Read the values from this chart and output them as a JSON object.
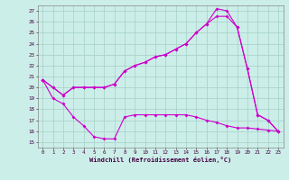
{
  "bg_color": "#cceee8",
  "grid_color": "#aad4cc",
  "line_color": "#cc00cc",
  "xlim": [
    -0.5,
    23.5
  ],
  "ylim": [
    14.5,
    27.5
  ],
  "ytick_vals": [
    15,
    16,
    17,
    18,
    19,
    20,
    21,
    22,
    23,
    24,
    25,
    26,
    27
  ],
  "xtick_vals": [
    0,
    1,
    2,
    3,
    4,
    5,
    6,
    7,
    8,
    9,
    10,
    11,
    12,
    13,
    14,
    15,
    16,
    17,
    18,
    19,
    20,
    21,
    22,
    23
  ],
  "xlabel": "Windchill (Refroidissement éolien,°C)",
  "line1_x": [
    0,
    1,
    2,
    3,
    4,
    5,
    6,
    7,
    8,
    9,
    10,
    11,
    12,
    13,
    14,
    15,
    16,
    17,
    18,
    19,
    20,
    21,
    22,
    23
  ],
  "line1_y": [
    20.7,
    20.0,
    19.3,
    20.0,
    20.0,
    20.0,
    20.0,
    20.3,
    21.5,
    22.0,
    22.3,
    22.8,
    23.0,
    23.5,
    24.0,
    25.0,
    25.8,
    27.2,
    27.0,
    25.5,
    21.7,
    17.5,
    17.0,
    16.0
  ],
  "line2_x": [
    0,
    1,
    2,
    3,
    4,
    5,
    6,
    7,
    8,
    9,
    10,
    11,
    12,
    13,
    14,
    15,
    16,
    17,
    18,
    19,
    20,
    21,
    22,
    23
  ],
  "line2_y": [
    20.7,
    20.0,
    19.3,
    20.0,
    20.0,
    20.0,
    20.0,
    20.3,
    21.5,
    22.0,
    22.3,
    22.8,
    23.0,
    23.5,
    24.0,
    25.0,
    25.8,
    26.5,
    26.5,
    25.5,
    21.7,
    17.5,
    17.0,
    16.0
  ],
  "line3_x": [
    0,
    1,
    2,
    3,
    4,
    5,
    6,
    7,
    8,
    9,
    10,
    11,
    12,
    13,
    14,
    15,
    16,
    17,
    18,
    19,
    20,
    21,
    22,
    23
  ],
  "line3_y": [
    20.7,
    19.0,
    18.5,
    17.3,
    16.5,
    15.5,
    15.3,
    15.3,
    17.3,
    17.5,
    17.5,
    17.5,
    17.5,
    17.5,
    17.5,
    17.3,
    17.0,
    16.8,
    16.5,
    16.3,
    16.3,
    16.2,
    16.1,
    16.0
  ]
}
